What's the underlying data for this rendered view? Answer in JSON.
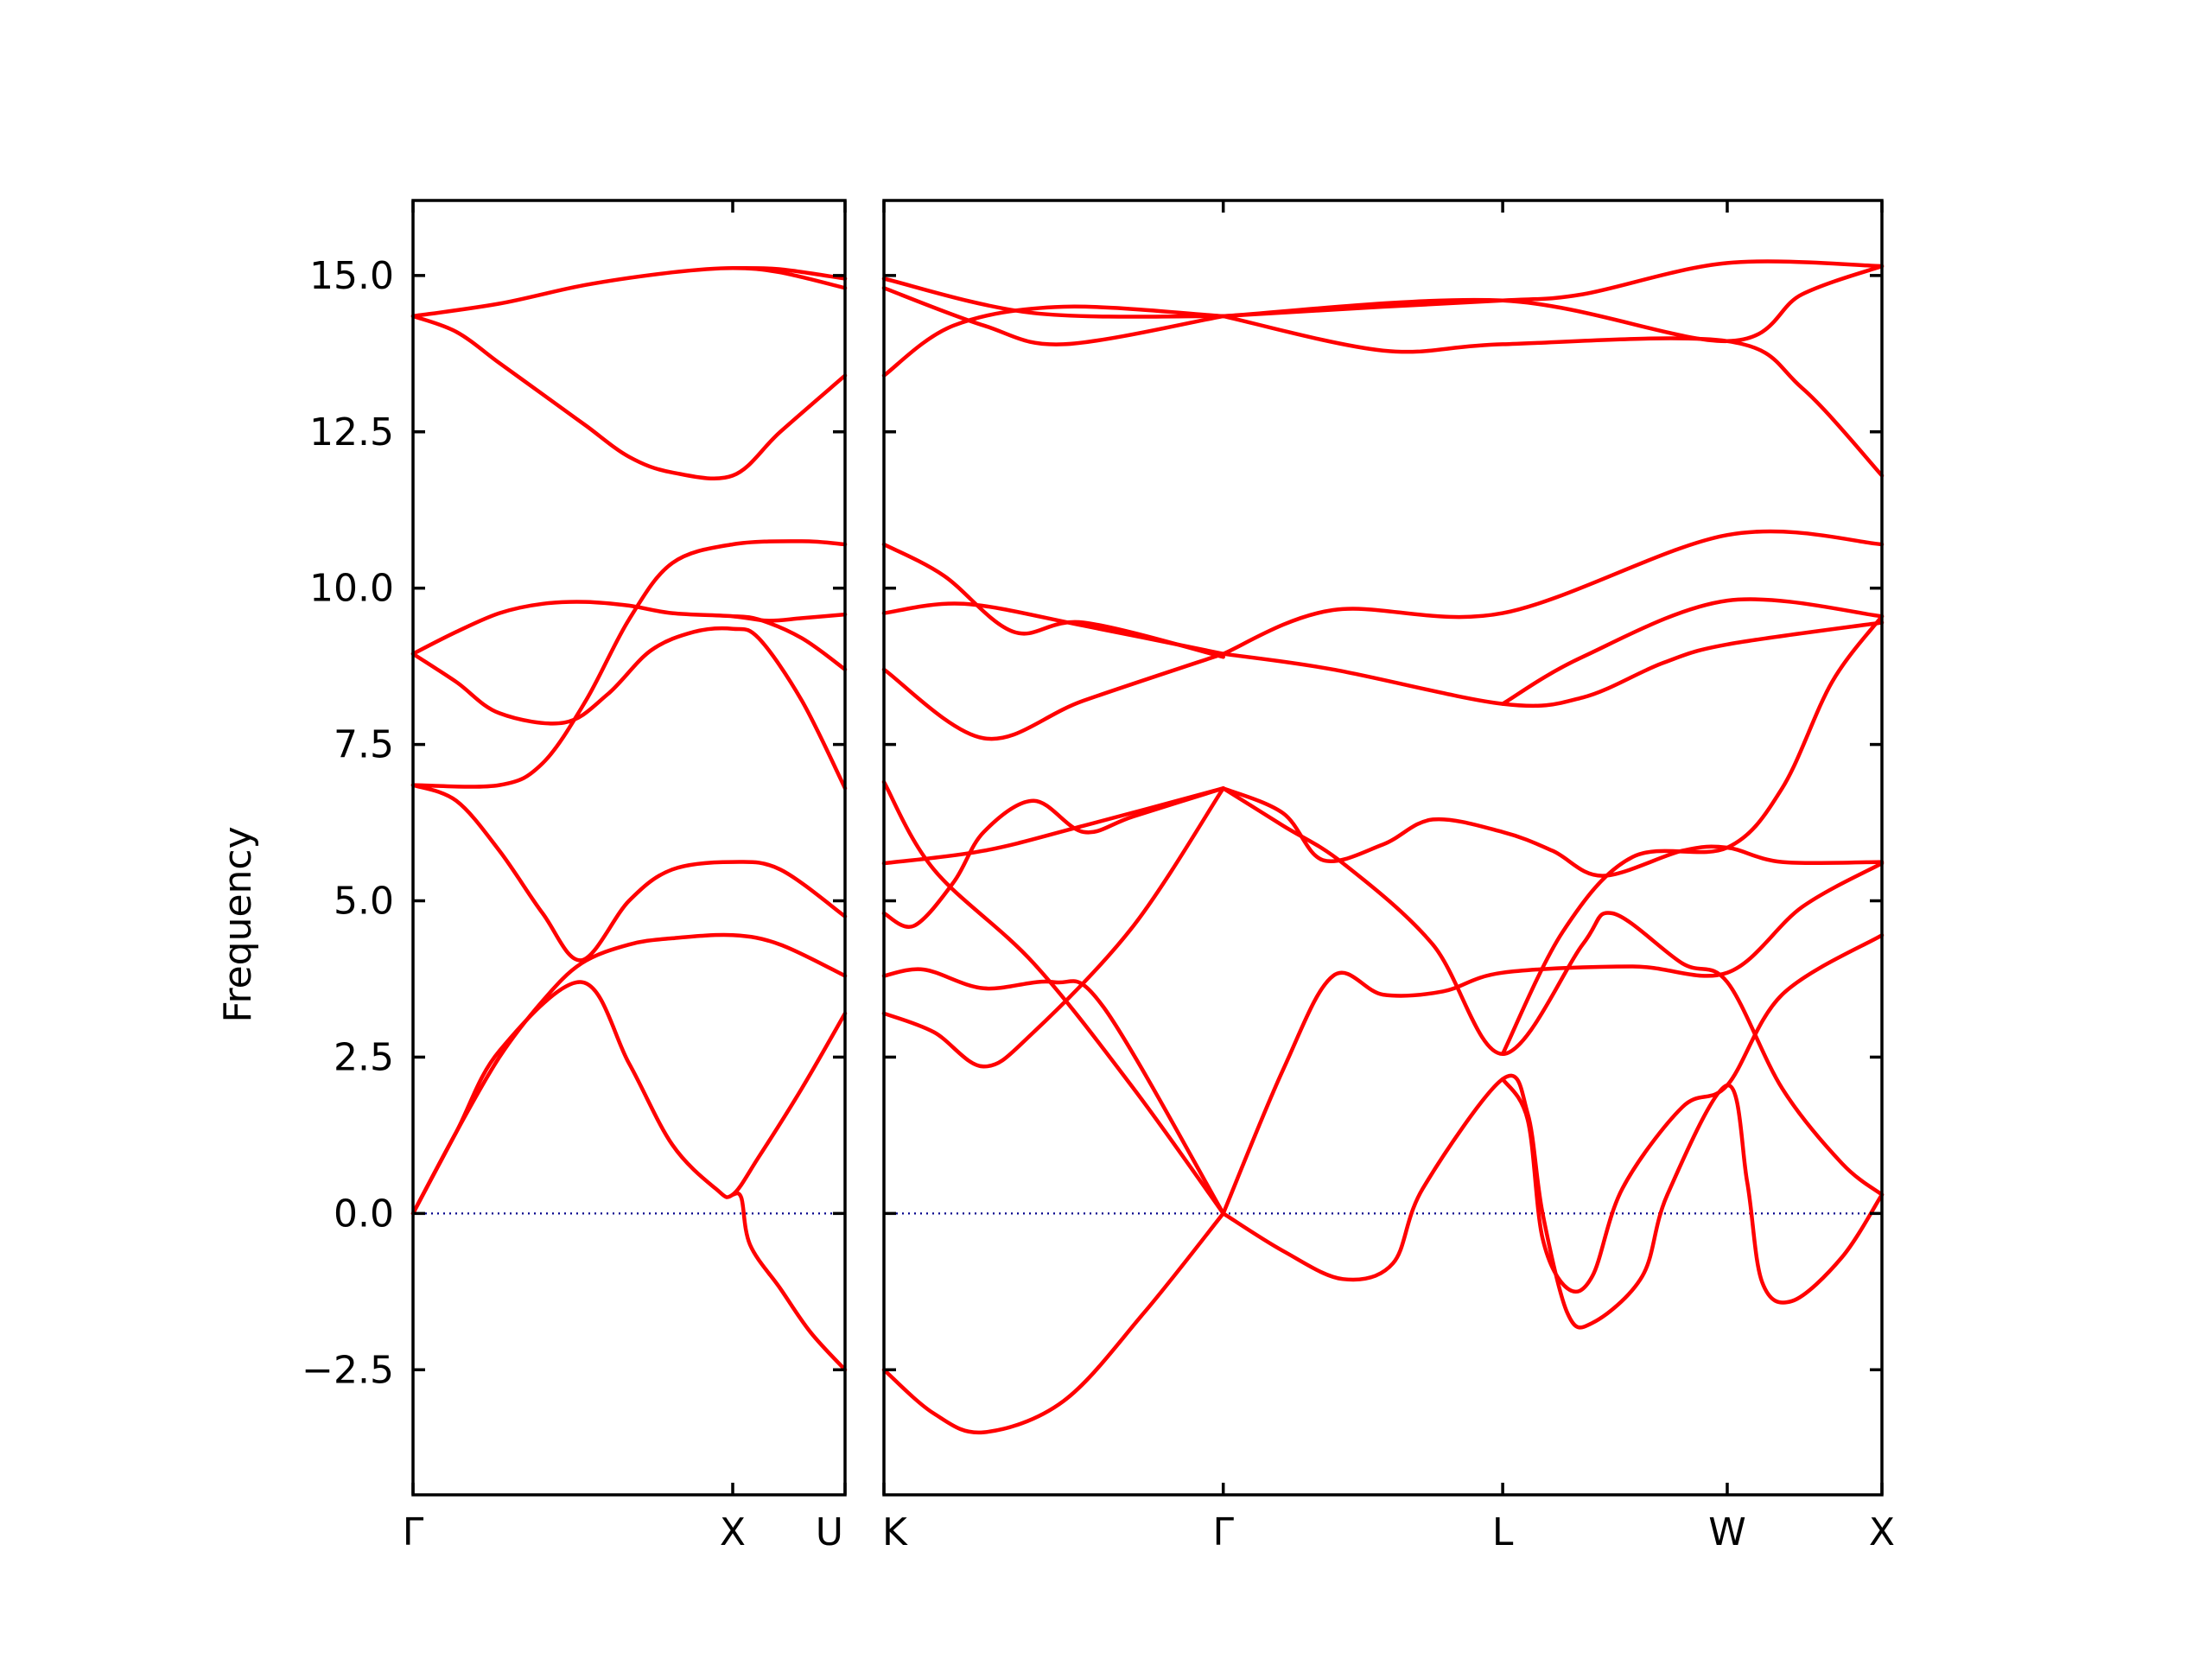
{
  "chart_data": {
    "type": "line",
    "ylabel": "Frequency",
    "ylim": [
      -4.5,
      16.2
    ],
    "yticks": [
      -2.5,
      0.0,
      2.5,
      5.0,
      7.5,
      10.0,
      12.5,
      15.0
    ],
    "ytick_labels": [
      "−2.5",
      "0.0",
      "2.5",
      "5.0",
      "7.5",
      "10.0",
      "12.5",
      "15.0"
    ],
    "band_color": "#ff0000",
    "zero_line_color": "#00008b",
    "panels": [
      {
        "xlim": [
          0,
          1.0
        ],
        "path_labels": [
          {
            "x": 0.0,
            "label": "Γ"
          },
          {
            "x": 0.74,
            "label": "X"
          },
          {
            "x": 1.0,
            "label": "U"
          }
        ],
        "bands": [
          [
            [
              0,
              0
            ],
            [
              0.1,
              1.3
            ],
            [
              0.2,
              2.6
            ],
            [
              0.39,
              3.7
            ],
            [
              0.5,
              2.4
            ],
            [
              0.6,
              1.1
            ],
            [
              0.7,
              0.4
            ],
            [
              0.74,
              0.3
            ],
            [
              0.8,
              0.9
            ],
            [
              0.9,
              2.0
            ],
            [
              1.0,
              3.2
            ]
          ],
          [
            [
              0,
              0
            ],
            [
              0.1,
              1.3
            ],
            [
              0.2,
              2.5
            ],
            [
              0.3,
              3.4
            ],
            [
              0.39,
              4.0
            ],
            [
              0.5,
              4.3
            ],
            [
              0.6,
              4.4
            ],
            [
              0.74,
              4.45
            ],
            [
              0.85,
              4.3
            ],
            [
              1.0,
              3.8
            ]
          ],
          [
            [
              0,
              6.85
            ],
            [
              0.1,
              6.6
            ],
            [
              0.2,
              5.8
            ],
            [
              0.3,
              4.8
            ],
            [
              0.39,
              4.05
            ],
            [
              0.5,
              5.0
            ],
            [
              0.6,
              5.5
            ],
            [
              0.74,
              5.62
            ],
            [
              0.85,
              5.5
            ],
            [
              1.0,
              4.75
            ]
          ],
          [
            [
              0,
              6.85
            ],
            [
              0.2,
              6.85
            ],
            [
              0.3,
              7.2
            ],
            [
              0.4,
              8.2
            ],
            [
              0.5,
              9.5
            ],
            [
              0.6,
              10.4
            ],
            [
              0.74,
              10.7
            ],
            [
              0.9,
              10.75
            ],
            [
              1.0,
              10.7
            ]
          ],
          [
            [
              0,
              8.95
            ],
            [
              0.1,
              8.5
            ],
            [
              0.2,
              8.0
            ],
            [
              0.35,
              7.85
            ],
            [
              0.45,
              8.3
            ],
            [
              0.55,
              9.0
            ],
            [
              0.65,
              9.3
            ],
            [
              0.74,
              9.35
            ],
            [
              0.8,
              9.2
            ],
            [
              0.9,
              8.2
            ],
            [
              1.0,
              6.8
            ]
          ],
          [
            [
              0,
              8.95
            ],
            [
              0.1,
              9.3
            ],
            [
              0.2,
              9.6
            ],
            [
              0.3,
              9.75
            ],
            [
              0.4,
              9.78
            ],
            [
              0.5,
              9.72
            ],
            [
              0.6,
              9.6
            ],
            [
              0.74,
              9.55
            ],
            [
              0.82,
              9.48
            ],
            [
              0.9,
              9.52
            ],
            [
              1.0,
              9.58
            ]
          ],
          [
            [
              0,
              14.35
            ],
            [
              0.1,
              14.1
            ],
            [
              0.2,
              13.6
            ],
            [
              0.3,
              13.1
            ],
            [
              0.4,
              12.6
            ],
            [
              0.5,
              12.1
            ],
            [
              0.6,
              11.85
            ],
            [
              0.74,
              11.8
            ],
            [
              0.85,
              12.5
            ],
            [
              1.0,
              13.4
            ]
          ],
          [
            [
              0,
              14.35
            ],
            [
              0.2,
              14.55
            ],
            [
              0.4,
              14.85
            ],
            [
              0.6,
              15.05
            ],
            [
              0.74,
              15.12
            ],
            [
              0.85,
              15.05
            ],
            [
              1.0,
              14.8
            ]
          ],
          [
            [
              0.74,
              15.12
            ],
            [
              0.85,
              15.1
            ],
            [
              1.0,
              14.95
            ]
          ],
          [
            [
              0.74,
              0.3
            ],
            [
              0.76,
              0.25
            ],
            [
              0.78,
              -0.5
            ],
            [
              0.85,
              -1.2
            ],
            [
              0.92,
              -1.9
            ],
            [
              1.0,
              -2.5
            ]
          ],
          [
            [
              0.74,
              9.55
            ],
            [
              0.8,
              9.5
            ],
            [
              0.9,
              9.2
            ],
            [
              1.0,
              8.7
            ]
          ]
        ]
      },
      {
        "xlim": [
          0,
          1.0
        ],
        "path_labels": [
          {
            "x": 0.0,
            "label": "K"
          },
          {
            "x": 0.34,
            "label": "Γ"
          },
          {
            "x": 0.62,
            "label": "L"
          },
          {
            "x": 0.845,
            "label": "W"
          },
          {
            "x": 1.0,
            "label": "X"
          }
        ],
        "bands": [
          [
            [
              0,
              -2.5
            ],
            [
              0.05,
              -3.2
            ],
            [
              0.1,
              -3.5
            ],
            [
              0.18,
              -3.0
            ],
            [
              0.26,
              -1.6
            ],
            [
              0.34,
              0
            ]
          ],
          [
            [
              0,
              3.2
            ],
            [
              0.05,
              2.9
            ],
            [
              0.1,
              2.35
            ],
            [
              0.15,
              2.9
            ],
            [
              0.25,
              4.6
            ],
            [
              0.34,
              6.8
            ]
          ],
          [
            [
              0,
              3.8
            ],
            [
              0.04,
              3.9
            ],
            [
              0.1,
              3.6
            ],
            [
              0.17,
              3.7
            ],
            [
              0.22,
              3.3
            ],
            [
              0.34,
              0
            ]
          ],
          [
            [
              0,
              4.8
            ],
            [
              0.03,
              4.6
            ],
            [
              0.07,
              5.3
            ],
            [
              0.1,
              6.1
            ],
            [
              0.15,
              6.6
            ],
            [
              0.2,
              6.1
            ],
            [
              0.25,
              6.35
            ],
            [
              0.34,
              6.8
            ]
          ],
          [
            [
              0,
              5.6
            ],
            [
              0.1,
              5.8
            ],
            [
              0.2,
              6.2
            ],
            [
              0.34,
              6.8
            ]
          ],
          [
            [
              0,
              6.9
            ],
            [
              0.05,
              5.5
            ],
            [
              0.15,
              4.0
            ],
            [
              0.25,
              2.0
            ],
            [
              0.34,
              0
            ]
          ],
          [
            [
              0,
              8.7
            ],
            [
              0.1,
              7.6
            ],
            [
              0.2,
              8.2
            ],
            [
              0.34,
              8.95
            ]
          ],
          [
            [
              0,
              9.6
            ],
            [
              0.08,
              9.75
            ],
            [
              0.2,
              9.4
            ],
            [
              0.34,
              8.95
            ]
          ],
          [
            [
              0,
              10.7
            ],
            [
              0.06,
              10.2
            ],
            [
              0.13,
              9.3
            ],
            [
              0.2,
              9.45
            ],
            [
              0.34,
              8.9
            ]
          ],
          [
            [
              0,
              13.4
            ],
            [
              0.07,
              14.2
            ],
            [
              0.18,
              14.5
            ],
            [
              0.34,
              14.35
            ]
          ],
          [
            [
              0,
              14.8
            ],
            [
              0.1,
              14.2
            ],
            [
              0.18,
              13.9
            ],
            [
              0.34,
              14.35
            ]
          ],
          [
            [
              0,
              14.95
            ],
            [
              0.15,
              14.4
            ],
            [
              0.34,
              14.35
            ]
          ],
          [
            [
              0.34,
              0
            ],
            [
              0.4,
              -0.6
            ],
            [
              0.46,
              -1.05
            ],
            [
              0.51,
              -0.8
            ],
            [
              0.54,
              0.4
            ],
            [
              0.62,
              2.15
            ],
            [
              0.645,
              1.6
            ],
            [
              0.66,
              0
            ],
            [
              0.685,
              -1.6
            ],
            [
              0.71,
              -1.75
            ],
            [
              0.76,
              -1.0
            ],
            [
              0.785,
              0.3
            ],
            [
              0.845,
              2.05
            ],
            [
              0.865,
              0.5
            ],
            [
              0.88,
              -1.1
            ],
            [
              0.91,
              -1.4
            ],
            [
              0.96,
              -0.7
            ],
            [
              1.0,
              0.3
            ]
          ],
          [
            [
              0.62,
              2.15
            ],
            [
              0.645,
              1.5
            ],
            [
              0.66,
              -0.4
            ],
            [
              0.685,
              -1.2
            ],
            [
              0.71,
              -1.0
            ],
            [
              0.74,
              0.4
            ],
            [
              0.8,
              1.7
            ],
            [
              0.845,
              2.05
            ],
            [
              0.9,
              3.5
            ],
            [
              1.0,
              4.45
            ]
          ],
          [
            [
              0.34,
              0
            ],
            [
              0.4,
              2.3
            ],
            [
              0.45,
              3.8
            ],
            [
              0.5,
              3.5
            ],
            [
              0.56,
              3.55
            ],
            [
              0.62,
              3.85
            ],
            [
              0.75,
              3.95
            ],
            [
              0.845,
              3.85
            ],
            [
              0.92,
              4.9
            ],
            [
              1.0,
              5.6
            ]
          ],
          [
            [
              0.34,
              6.8
            ],
            [
              0.4,
              6.2
            ],
            [
              0.46,
              5.6
            ],
            [
              0.55,
              4.3
            ],
            [
              0.62,
              2.55
            ],
            [
              0.7,
              4.3
            ],
            [
              0.73,
              4.8
            ],
            [
              0.8,
              4.0
            ],
            [
              0.845,
              3.7
            ],
            [
              0.9,
              2.0
            ],
            [
              0.96,
              0.8
            ],
            [
              1.0,
              0.3
            ]
          ],
          [
            [
              0.34,
              6.8
            ],
            [
              0.4,
              6.4
            ],
            [
              0.44,
              5.65
            ],
            [
              0.5,
              5.9
            ],
            [
              0.55,
              6.3
            ],
            [
              0.62,
              6.1
            ],
            [
              0.67,
              5.8
            ],
            [
              0.72,
              5.4
            ],
            [
              0.8,
              5.8
            ],
            [
              0.845,
              5.85
            ],
            [
              0.9,
              5.62
            ],
            [
              1.0,
              5.62
            ]
          ],
          [
            [
              0.62,
              2.55
            ],
            [
              0.68,
              4.5
            ],
            [
              0.75,
              5.7
            ],
            [
              0.845,
              5.85
            ],
            [
              0.9,
              6.8
            ],
            [
              0.95,
              8.5
            ],
            [
              1.0,
              9.55
            ]
          ],
          [
            [
              0.34,
              8.95
            ],
            [
              0.45,
              8.7
            ],
            [
              0.62,
              8.15
            ],
            [
              0.7,
              8.25
            ],
            [
              0.78,
              8.8
            ],
            [
              0.845,
              9.1
            ],
            [
              1.0,
              9.45
            ]
          ],
          [
            [
              0.34,
              8.95
            ],
            [
              0.45,
              9.65
            ],
            [
              0.62,
              9.6
            ],
            [
              0.845,
              10.85
            ],
            [
              1.0,
              10.7
            ]
          ],
          [
            [
              0.62,
              8.15
            ],
            [
              0.7,
              8.9
            ],
            [
              0.845,
              9.8
            ],
            [
              1.0,
              9.55
            ]
          ],
          [
            [
              0.34,
              14.35
            ],
            [
              0.5,
              14.5
            ],
            [
              0.62,
              14.6
            ],
            [
              0.7,
              14.7
            ],
            [
              0.845,
              15.2
            ],
            [
              1.0,
              15.15
            ]
          ],
          [
            [
              0.34,
              14.35
            ],
            [
              0.5,
              13.8
            ],
            [
              0.62,
              13.9
            ],
            [
              0.845,
              13.95
            ],
            [
              0.92,
              13.2
            ],
            [
              1.0,
              11.8
            ]
          ],
          [
            [
              0.34,
              14.35
            ],
            [
              0.62,
              14.6
            ],
            [
              0.845,
              13.95
            ],
            [
              0.92,
              14.7
            ],
            [
              1.0,
              15.15
            ]
          ]
        ]
      }
    ]
  }
}
